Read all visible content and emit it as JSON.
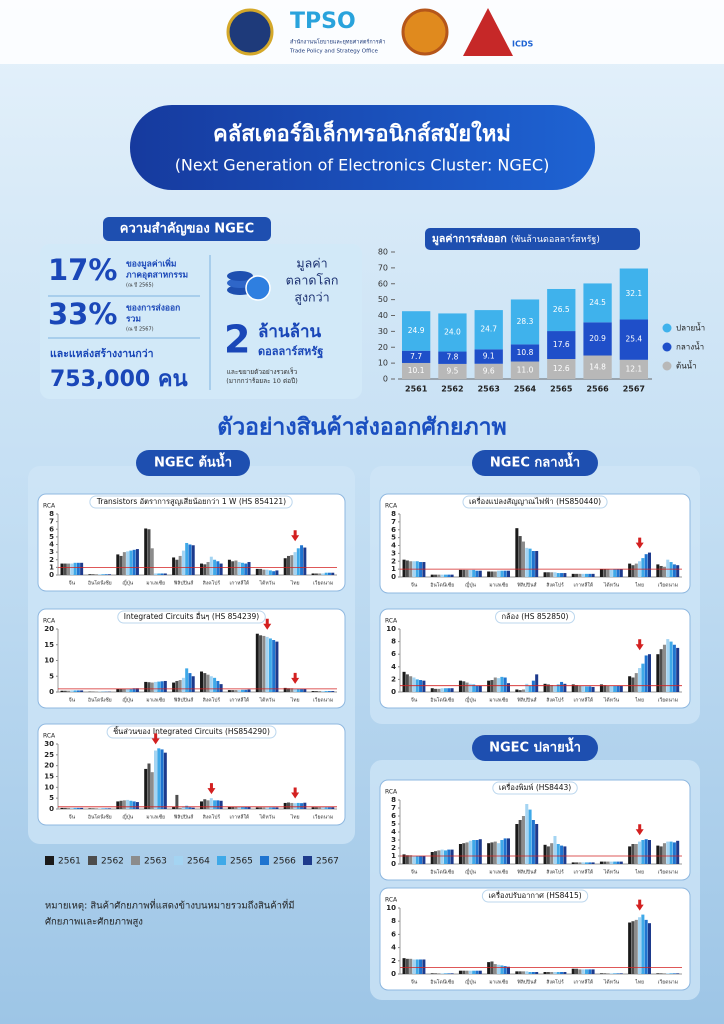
{
  "header": {
    "brand": "TPSO",
    "brand_th": "สำนักงานนโยบายและยุทธศาสตร์การค้า",
    "brand_en": "Trade Policy and Strategy Office",
    "partner": "ICDS"
  },
  "title": "คลัสเตอร์อิเล็กทรอนิกส์สมัยใหม่",
  "subtitle": "(Next Generation of Electronics Cluster: NGEC)",
  "importance": {
    "title": "ความสำคัญของ NGEC",
    "stats": [
      {
        "value": "17%",
        "text": [
          "ของมูลค่าเพิ่ม",
          "ภาคอุตสาหกรรม"
        ],
        "note": "(ณ ปี 2565)"
      },
      {
        "value": "33%",
        "text": [
          "ของการส่งออก",
          "รวม"
        ],
        "note": "(ณ ปี 2567)"
      }
    ],
    "jobs_label": "และแหล่งสร้างงานกว่า",
    "jobs_value": "753,000 คน",
    "market_label": [
      "มูลค่า",
      "ตลาดโลก",
      "สูงกว่า"
    ],
    "market_value": "2",
    "market_unit": "ล้านล้าน",
    "market_currency": "ดอลลาร์สหรัฐ",
    "growth_note": [
      "และขยายตัวอย่างรวดเร็ว",
      "(มากกว่าร้อยละ  10 ต่อปี)"
    ]
  },
  "section_title": "ตัวอย่างสินค้าส่งออกศักยภาพ",
  "sections": [
    "NGEC ต้นน้ำ",
    "NGEC กลางน้ำ",
    "NGEC ปลายน้ำ"
  ],
  "chart_data": [
    {
      "type": "stacked_bar",
      "title": "มูลค่าการส่งออก",
      "subtitle": "(พันล้านดอลลาร์สหรัฐ)",
      "categories": [
        "2561",
        "2562",
        "2563",
        "2564",
        "2565",
        "2566",
        "2567"
      ],
      "series": [
        {
          "name": "ต้นน้ำ",
          "color": "#b8b8b8",
          "values": [
            10.1,
            9.5,
            9.6,
            11.0,
            12.6,
            14.8,
            12.1
          ],
          "value_labels": [
            "10.1",
            "9.5",
            "9.6",
            "11.0",
            "12.6",
            "14.8",
            "12.1"
          ]
        },
        {
          "name": "กลางน้ำ",
          "color": "#1f4fc9",
          "values": [
            7.7,
            7.8,
            9.1,
            10.8,
            17.6,
            20.9,
            25.4
          ]
        },
        {
          "name": "ปลายน้ำ",
          "color": "#3fb2ec",
          "values": [
            24.9,
            24.0,
            24.7,
            28.3,
            26.5,
            24.5,
            32.1
          ],
          "value_labels": [
            "24.9",
            "24.0",
            "24.7",
            "28.3",
            "26.5",
            "24.5",
            "32.1"
          ]
        }
      ],
      "ylim": [
        0,
        80
      ],
      "yticks": [
        0,
        10,
        20,
        30,
        40,
        50,
        60,
        70,
        80
      ]
    },
    {
      "type": "grouped_bar",
      "title": "Transistors อัตราการสูญเสียน้อยกว่า 1 W (HS 854121)",
      "y_label": "RCA",
      "categories": [
        "จีน",
        "อินโดนีเซีย",
        "ญี่ปุ่น",
        "มาเลเซีย",
        "ฟิลิปปินส์",
        "สิงคโปร์",
        "เกาหลีใต้",
        "ไต้หวัน",
        "ไทย",
        "เวียดนาม"
      ],
      "series": [
        {
          "values": [
            1.5,
            0.1,
            2.7,
            6.1,
            2.3,
            1.5,
            2.0,
            0.8,
            2.2,
            0.2
          ]
        },
        {
          "values": [
            1.5,
            0.1,
            2.5,
            6.0,
            2.0,
            1.4,
            1.8,
            0.8,
            2.5,
            0.2
          ]
        },
        {
          "values": [
            1.5,
            0.1,
            3.0,
            3.5,
            2.5,
            1.7,
            1.9,
            0.7,
            2.6,
            0.2
          ]
        },
        {
          "values": [
            1.5,
            0.1,
            3.1,
            0.2,
            3.2,
            2.4,
            1.7,
            0.7,
            3.0,
            0.2
          ]
        },
        {
          "values": [
            1.6,
            0.1,
            3.2,
            0.2,
            4.2,
            2.0,
            1.6,
            0.6,
            3.5,
            0.3
          ]
        },
        {
          "values": [
            1.6,
            0.1,
            3.3,
            0.2,
            4.0,
            1.8,
            1.5,
            0.5,
            3.9,
            0.3
          ]
        },
        {
          "values": [
            1.6,
            0.1,
            3.4,
            0.2,
            3.9,
            1.5,
            1.7,
            0.6,
            3.6,
            0.3
          ]
        }
      ],
      "ylim": [
        0,
        8
      ],
      "yticks": [
        0,
        1,
        2,
        3,
        4,
        5,
        6,
        7,
        8
      ],
      "reference_line": 1,
      "highlight": [
        8
      ]
    },
    {
      "type": "grouped_bar",
      "title": "Integrated Circuits อื่นๆ (HS 854239)",
      "y_label": "RCA",
      "categories": [
        "จีน",
        "อินโดนีเซีย",
        "ญี่ปุ่น",
        "มาเลเซีย",
        "ฟิลิปปินส์",
        "สิงคโปร์",
        "เกาหลีใต้",
        "ไต้หวัน",
        "ไทย",
        "เวียดนาม"
      ],
      "series": [
        {
          "values": [
            0.4,
            0.1,
            1.0,
            3.2,
            3.0,
            6.5,
            0.6,
            18.5,
            1.3,
            0.3
          ]
        },
        {
          "values": [
            0.4,
            0.1,
            1.0,
            3.1,
            3.5,
            6.0,
            0.6,
            18.0,
            1.2,
            0.3
          ]
        },
        {
          "values": [
            0.4,
            0.1,
            1.0,
            3.0,
            3.8,
            5.5,
            0.6,
            17.8,
            1.2,
            0.3
          ]
        },
        {
          "values": [
            0.5,
            0.1,
            1.1,
            3.2,
            4.5,
            5.0,
            0.6,
            17.5,
            1.0,
            0.3
          ]
        },
        {
          "values": [
            0.5,
            0.1,
            1.1,
            3.3,
            7.5,
            4.5,
            0.7,
            17.0,
            1.0,
            0.3
          ]
        },
        {
          "values": [
            0.5,
            0.1,
            1.2,
            3.4,
            6.0,
            3.5,
            0.7,
            16.5,
            1.0,
            0.3
          ]
        },
        {
          "values": [
            0.5,
            0.1,
            1.2,
            3.5,
            5.0,
            2.5,
            0.8,
            16.0,
            1.0,
            0.3
          ]
        }
      ],
      "ylim": [
        0,
        20
      ],
      "yticks": [
        0,
        5,
        10,
        15,
        20
      ],
      "reference_line": 1,
      "highlight": [
        7,
        8
      ]
    },
    {
      "type": "grouped_bar",
      "title": "ชิ้นส่วนของ Integrated Circuits (HS854290)",
      "y_label": "RCA",
      "categories": [
        "จีน",
        "อินโดนีเซีย",
        "ญี่ปุ่น",
        "มาเลเซีย",
        "ฟิลิปปินส์",
        "สิงคโปร์",
        "เกาหลีใต้",
        "ไต้หวัน",
        "ไทย",
        "เวียดนาม"
      ],
      "series": [
        {
          "values": [
            0.5,
            0.3,
            3.5,
            18.5,
            1.0,
            3.5,
            1.0,
            0.7,
            2.8,
            0.8
          ]
        },
        {
          "values": [
            0.5,
            0.3,
            3.8,
            21.0,
            6.5,
            4.5,
            1.0,
            0.7,
            3.0,
            0.8
          ]
        },
        {
          "values": [
            0.5,
            0.3,
            4.0,
            17.0,
            0.5,
            4.0,
            1.0,
            0.7,
            2.8,
            0.8
          ]
        },
        {
          "values": [
            0.5,
            0.3,
            4.2,
            27.0,
            1.2,
            5.0,
            1.0,
            0.7,
            2.7,
            0.8
          ]
        },
        {
          "values": [
            0.5,
            0.3,
            3.8,
            28.0,
            1.5,
            4.0,
            1.0,
            0.7,
            2.8,
            0.8
          ]
        },
        {
          "values": [
            0.5,
            0.3,
            3.5,
            27.5,
            0.8,
            4.0,
            1.0,
            0.7,
            2.7,
            0.8
          ]
        },
        {
          "values": [
            0.5,
            0.3,
            3.2,
            26.0,
            0.6,
            3.8,
            1.0,
            0.7,
            2.9,
            0.8
          ]
        }
      ],
      "ylim": [
        0,
        30
      ],
      "yticks": [
        0,
        5,
        10,
        15,
        20,
        25,
        30
      ],
      "reference_line": 1,
      "highlight": [
        3,
        5,
        8
      ]
    },
    {
      "type": "grouped_bar",
      "title": "เครื่องแปลงสัญญาณไฟฟ้า (HS850440)",
      "y_label": "RCA",
      "categories": [
        "จีน",
        "อินโดนีเซีย",
        "ญี่ปุ่น",
        "มาเลเซีย",
        "ฟิลิปปินส์",
        "สิงคโปร์",
        "เกาหลีใต้",
        "ไต้หวัน",
        "ไทย",
        "เวียดนาม"
      ],
      "series": [
        {
          "values": [
            2.2,
            0.3,
            0.9,
            0.7,
            6.2,
            0.6,
            0.4,
            1.0,
            1.7,
            1.6
          ]
        },
        {
          "values": [
            2.1,
            0.3,
            0.9,
            0.7,
            5.2,
            0.6,
            0.4,
            1.0,
            1.5,
            1.4
          ]
        },
        {
          "values": [
            2.0,
            0.3,
            0.9,
            0.7,
            4.5,
            0.6,
            0.4,
            1.0,
            1.7,
            1.3
          ]
        },
        {
          "values": [
            2.0,
            0.3,
            0.9,
            0.8,
            3.7,
            0.6,
            0.4,
            1.0,
            2.0,
            2.2
          ]
        },
        {
          "values": [
            2.0,
            0.3,
            0.9,
            0.8,
            3.6,
            0.5,
            0.4,
            1.0,
            2.4,
            1.9
          ]
        },
        {
          "values": [
            1.9,
            0.3,
            0.8,
            0.8,
            3.3,
            0.5,
            0.4,
            1.0,
            2.9,
            1.6
          ]
        },
        {
          "values": [
            1.9,
            0.3,
            0.8,
            0.8,
            3.3,
            0.5,
            0.4,
            1.0,
            3.1,
            1.5
          ]
        }
      ],
      "ylim": [
        0,
        8
      ],
      "yticks": [
        0,
        1,
        2,
        3,
        4,
        5,
        6,
        7,
        8
      ],
      "reference_line": 1,
      "highlight": [
        8
      ]
    },
    {
      "type": "grouped_bar",
      "title": "กล้อง (HS 852850)",
      "y_label": "RCA",
      "categories": [
        "จีน",
        "อินโดนีเซีย",
        "ญี่ปุ่น",
        "มาเลเซีย",
        "ฟิลิปปินส์",
        "สิงคโปร์",
        "เกาหลีใต้",
        "ไต้หวัน",
        "ไทย",
        "เวียดนาม"
      ],
      "series": [
        {
          "values": [
            3.2,
            0.6,
            1.8,
            1.8,
            0.4,
            1.3,
            1.2,
            1.2,
            2.5,
            6.0
          ]
        },
        {
          "values": [
            2.8,
            0.5,
            1.7,
            1.9,
            0.3,
            1.2,
            1.1,
            1.1,
            2.3,
            6.8
          ]
        },
        {
          "values": [
            2.5,
            0.5,
            1.5,
            2.3,
            0.4,
            1.1,
            1.0,
            1.0,
            3.0,
            7.5
          ]
        },
        {
          "values": [
            2.3,
            0.6,
            1.3,
            2.2,
            1.3,
            1.0,
            1.0,
            1.0,
            3.8,
            8.4
          ]
        },
        {
          "values": [
            2.0,
            0.6,
            1.2,
            2.4,
            1.0,
            1.2,
            0.9,
            1.0,
            4.5,
            8.0
          ]
        },
        {
          "values": [
            1.9,
            0.6,
            1.0,
            2.3,
            1.8,
            1.6,
            0.9,
            1.0,
            5.8,
            7.5
          ]
        },
        {
          "values": [
            1.8,
            0.6,
            1.0,
            1.4,
            2.8,
            1.3,
            0.8,
            1.0,
            6.0,
            7.0
          ]
        }
      ],
      "ylim": [
        0,
        10
      ],
      "yticks": [
        0,
        2,
        4,
        6,
        8,
        10
      ],
      "reference_line": 1,
      "highlight": [
        8
      ]
    },
    {
      "type": "grouped_bar",
      "title": "เครื่องพิมพ์ (HS8443)",
      "y_label": "RCA",
      "categories": [
        "จีน",
        "อินโดนีเซีย",
        "ญี่ปุ่น",
        "มาเลเซีย",
        "ฟิลิปปินส์",
        "สิงคโปร์",
        "เกาหลีใต้",
        "ไต้หวัน",
        "ไทย",
        "เวียดนาม"
      ],
      "series": [
        {
          "values": [
            1.2,
            1.5,
            2.5,
            2.6,
            5.0,
            2.4,
            0.2,
            0.3,
            2.2,
            2.3
          ]
        },
        {
          "values": [
            1.1,
            1.6,
            2.6,
            2.7,
            5.5,
            2.2,
            0.2,
            0.3,
            2.5,
            2.2
          ]
        },
        {
          "values": [
            1.1,
            1.7,
            2.7,
            2.8,
            6.0,
            2.6,
            0.2,
            0.3,
            2.5,
            2.6
          ]
        },
        {
          "values": [
            1.0,
            1.8,
            2.9,
            2.6,
            7.5,
            3.5,
            0.2,
            0.3,
            2.8,
            2.8
          ]
        },
        {
          "values": [
            1.0,
            1.7,
            3.0,
            3.0,
            6.8,
            2.5,
            0.2,
            0.3,
            3.0,
            2.8
          ]
        },
        {
          "values": [
            1.0,
            1.8,
            3.0,
            3.2,
            5.5,
            2.3,
            0.2,
            0.3,
            3.1,
            2.7
          ]
        },
        {
          "values": [
            1.0,
            1.8,
            3.1,
            3.2,
            5.0,
            2.2,
            0.2,
            0.3,
            3.0,
            2.9
          ]
        }
      ],
      "ylim": [
        0,
        8
      ],
      "yticks": [
        0,
        1,
        2,
        3,
        4,
        5,
        6,
        7,
        8
      ],
      "reference_line": 1,
      "highlight": [
        8
      ]
    },
    {
      "type": "grouped_bar",
      "title": "เครื่องปรับอากาศ (HS8415)",
      "y_label": "RCA",
      "categories": [
        "จีน",
        "อินโดนีเซีย",
        "ญี่ปุ่น",
        "มาเลเซีย",
        "ฟิลิปปินส์",
        "สิงคโปร์",
        "เกาหลีใต้",
        "ไต้หวัน",
        "ไทย",
        "เวียดนาม"
      ],
      "series": [
        {
          "values": [
            2.4,
            0.1,
            0.5,
            1.8,
            0.4,
            0.3,
            0.8,
            0.1,
            7.8,
            0.1
          ]
        },
        {
          "values": [
            2.3,
            0.1,
            0.5,
            1.9,
            0.4,
            0.3,
            0.8,
            0.1,
            8.0,
            0.1
          ]
        },
        {
          "values": [
            2.3,
            0.1,
            0.5,
            1.5,
            0.4,
            0.3,
            0.7,
            0.1,
            8.2,
            0.1
          ]
        },
        {
          "values": [
            2.2,
            0.1,
            0.5,
            1.4,
            0.4,
            0.3,
            0.7,
            0.1,
            8.6,
            0.1
          ]
        },
        {
          "values": [
            2.2,
            0.1,
            0.5,
            1.3,
            0.3,
            0.3,
            0.7,
            0.1,
            9.0,
            0.1
          ]
        },
        {
          "values": [
            2.2,
            0.1,
            0.5,
            1.2,
            0.3,
            0.3,
            0.7,
            0.1,
            8.2,
            0.1
          ]
        },
        {
          "values": [
            2.2,
            0.1,
            0.5,
            1.1,
            0.3,
            0.3,
            0.7,
            0.1,
            7.7,
            0.1
          ]
        }
      ],
      "ylim": [
        0,
        10
      ],
      "yticks": [
        0,
        2,
        4,
        6,
        8,
        10
      ],
      "reference_line": 1,
      "highlight": [
        8
      ]
    }
  ],
  "rca_legend": [
    {
      "name": "2561",
      "color": "#1a1a1a"
    },
    {
      "name": "2562",
      "color": "#4d4d4d"
    },
    {
      "name": "2563",
      "color": "#8c8c8c"
    },
    {
      "name": "2564",
      "color": "#a4d4f2"
    },
    {
      "name": "2565",
      "color": "#3fa9e8"
    },
    {
      "name": "2566",
      "color": "#1f74d0"
    },
    {
      "name": "2567",
      "color": "#1d3a8c"
    }
  ],
  "note": [
    "หมายเหตุ: สินค้าศักยภาพที่แสดงข้างบนหมายรวมถึงสินค้าที่มี",
    "ศักยภาพและศักยภาพสูง"
  ]
}
